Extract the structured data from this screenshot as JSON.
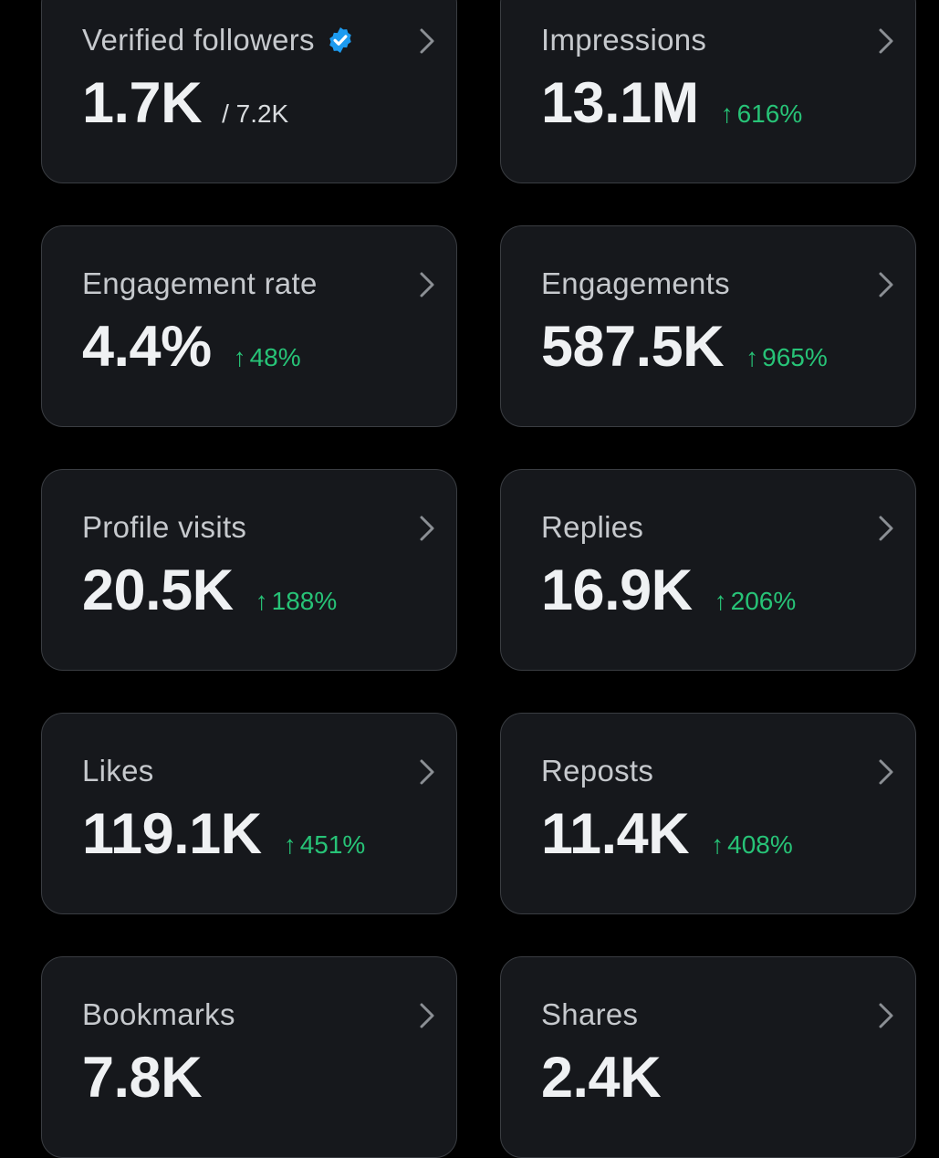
{
  "colors": {
    "background": "#000000",
    "card_background": "#16181c",
    "card_border": "#3a3d42",
    "label": "#c6c9cd",
    "value": "#eff1f3",
    "positive_change": "#27c377",
    "verified_badge": "#1d9bf0"
  },
  "cards": [
    {
      "title": "Verified followers",
      "value": "1.7K",
      "sub": "/ 7.2K",
      "change": "",
      "arrow": "",
      "icon": "verified-badge-icon"
    },
    {
      "title": "Impressions",
      "value": "13.1M",
      "sub": "",
      "change": "616%",
      "arrow": "↑"
    },
    {
      "title": "Engagement rate",
      "value": "4.4%",
      "sub": "",
      "change": "48%",
      "arrow": "↑"
    },
    {
      "title": "Engagements",
      "value": "587.5K",
      "sub": "",
      "change": "965%",
      "arrow": "↑"
    },
    {
      "title": "Profile visits",
      "value": "20.5K",
      "sub": "",
      "change": "188%",
      "arrow": "↑"
    },
    {
      "title": "Replies",
      "value": "16.9K",
      "sub": "",
      "change": "206%",
      "arrow": "↑"
    },
    {
      "title": "Likes",
      "value": "119.1K",
      "sub": "",
      "change": "451%",
      "arrow": "↑"
    },
    {
      "title": "Reposts",
      "value": "11.4K",
      "sub": "",
      "change": "408%",
      "arrow": "↑"
    },
    {
      "title": "Bookmarks",
      "value": "7.8K",
      "sub": "",
      "change": "",
      "arrow": ""
    },
    {
      "title": "Shares",
      "value": "2.4K",
      "sub": "",
      "change": "",
      "arrow": ""
    }
  ]
}
